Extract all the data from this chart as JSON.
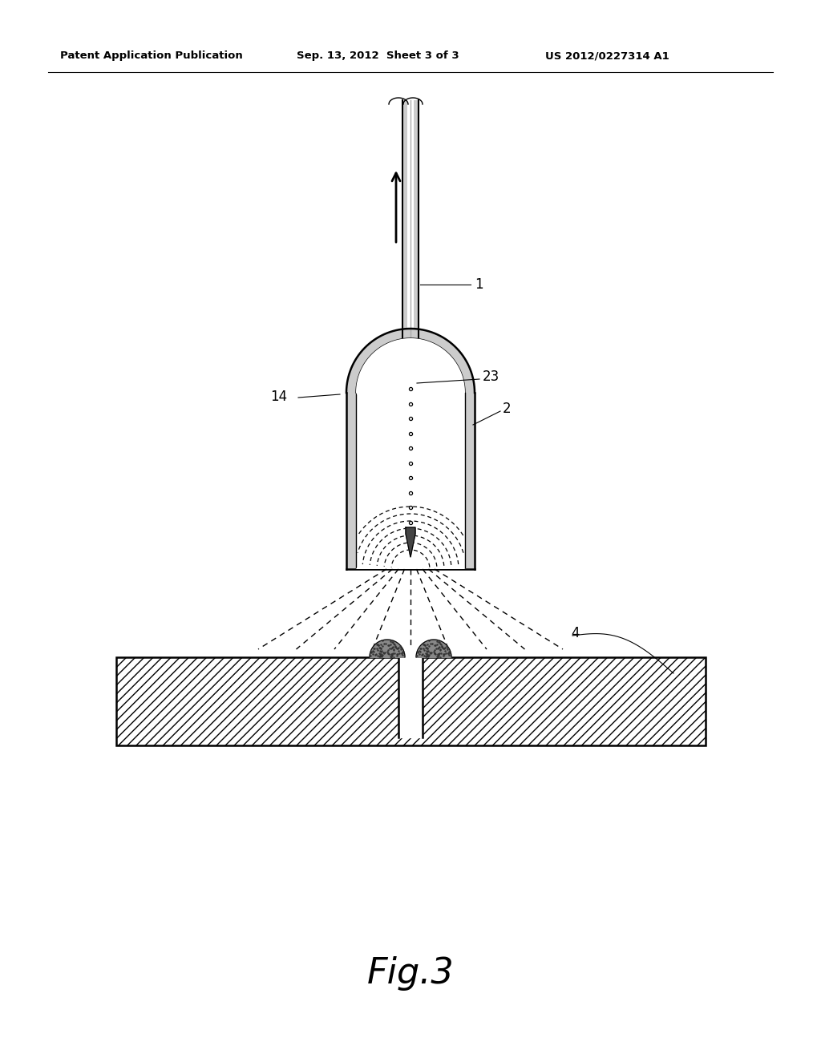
{
  "bg_color": "#ffffff",
  "line_color": "#000000",
  "title_header": "Patent Application Publication",
  "title_date": "Sep. 13, 2012  Sheet 3 of 3",
  "title_patent": "US 2012/0227314 A1",
  "fig_label": "Fig.3",
  "label_1": "1",
  "label_2": "2",
  "label_14": "14",
  "label_23": "23",
  "label_4": "4"
}
